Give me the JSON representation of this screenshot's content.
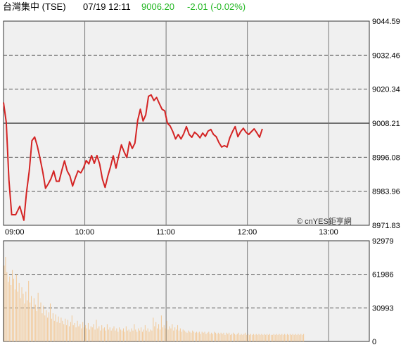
{
  "header": {
    "title": "台灣集中 (TSE)",
    "datetime": "07/19 12:11",
    "price": "9006.20",
    "change": "-2.01 (-0.02%)"
  },
  "colors": {
    "price_up": "#22b722",
    "price_line": "#d42424",
    "volume_bar": "#f2c896",
    "panel_bg": "#f0f0f0",
    "grid": "#555555"
  },
  "watermark": "© cnYES鉅亨網",
  "chart_data": [
    {
      "type": "line",
      "name": "price",
      "grid": true,
      "x_ticks": [
        "09:00",
        "10:00",
        "11:00",
        "12:00",
        "13:00"
      ],
      "x_range": [
        "09:00",
        "13:30"
      ],
      "y_ticks": [
        "9044.59",
        "9032.46",
        "9020.34",
        "9008.21",
        "8996.08",
        "8983.96",
        "8971.83"
      ],
      "ylim": [
        8971.83,
        9044.59
      ],
      "reference": 9008.21,
      "points": [
        [
          "09:00",
          9015.6
        ],
        [
          "09:02",
          9008.5
        ],
        [
          "09:04",
          8988.0
        ],
        [
          "09:06",
          8975.6
        ],
        [
          "09:09",
          8975.6
        ],
        [
          "09:12",
          8978.6
        ],
        [
          "09:15",
          8973.6
        ],
        [
          "09:17",
          8983.6
        ],
        [
          "09:19",
          8991.2
        ],
        [
          "09:21",
          9002.0
        ],
        [
          "09:23",
          9003.3
        ],
        [
          "09:25",
          9000.0
        ],
        [
          "09:27",
          8995.6
        ],
        [
          "09:29",
          8990.7
        ],
        [
          "09:31",
          8985.0
        ],
        [
          "09:33",
          8986.6
        ],
        [
          "09:35",
          8988.4
        ],
        [
          "09:37",
          8991.2
        ],
        [
          "09:39",
          8987.5
        ],
        [
          "09:41",
          8987.5
        ],
        [
          "09:43",
          8991.3
        ],
        [
          "09:45",
          8994.8
        ],
        [
          "09:47",
          8991.2
        ],
        [
          "09:49",
          8989.4
        ],
        [
          "09:51",
          8985.8
        ],
        [
          "09:53",
          8988.7
        ],
        [
          "09:55",
          8991.2
        ],
        [
          "09:57",
          8990.5
        ],
        [
          "09:59",
          8992.2
        ],
        [
          "10:01",
          8994.9
        ],
        [
          "10:03",
          8993.7
        ],
        [
          "10:05",
          8996.7
        ],
        [
          "10:07",
          8993.9
        ],
        [
          "10:09",
          8996.7
        ],
        [
          "10:11",
          8993.6
        ],
        [
          "10:13",
          8988.3
        ],
        [
          "10:15",
          8985.3
        ],
        [
          "10:17",
          8989.4
        ],
        [
          "10:19",
          8992.7
        ],
        [
          "10:21",
          8996.6
        ],
        [
          "10:23",
          8992.2
        ],
        [
          "10:25",
          8996.5
        ],
        [
          "10:27",
          9000.5
        ],
        [
          "10:29",
          8998.0
        ],
        [
          "10:31",
          8996.0
        ],
        [
          "10:33",
          9001.6
        ],
        [
          "10:35",
          8999.2
        ],
        [
          "10:37",
          9001.1
        ],
        [
          "10:39",
          9009.2
        ],
        [
          "10:41",
          9013.2
        ],
        [
          "10:43",
          9009.0
        ],
        [
          "10:45",
          9011.2
        ],
        [
          "10:47",
          9017.8
        ],
        [
          "10:49",
          9018.3
        ],
        [
          "10:51",
          9016.3
        ],
        [
          "10:53",
          9017.4
        ],
        [
          "10:55",
          9015.2
        ],
        [
          "10:57",
          9013.2
        ],
        [
          "10:59",
          9012.6
        ],
        [
          "11:01",
          9008.2
        ],
        [
          "11:03",
          9007.2
        ],
        [
          "11:05",
          9005.2
        ],
        [
          "11:07",
          9002.6
        ],
        [
          "11:09",
          9004.2
        ],
        [
          "11:11",
          9002.6
        ],
        [
          "11:13",
          9004.4
        ],
        [
          "11:15",
          9007.0
        ],
        [
          "11:17",
          9004.2
        ],
        [
          "11:19",
          9003.2
        ],
        [
          "11:21",
          9005.0
        ],
        [
          "11:23",
          9004.2
        ],
        [
          "11:25",
          9003.0
        ],
        [
          "11:27",
          9004.7
        ],
        [
          "11:29",
          9003.5
        ],
        [
          "11:31",
          9005.4
        ],
        [
          "11:33",
          9006.0
        ],
        [
          "11:35",
          9004.2
        ],
        [
          "11:37",
          9003.4
        ],
        [
          "11:39",
          9001.3
        ],
        [
          "11:41",
          8999.7
        ],
        [
          "11:43",
          9000.2
        ],
        [
          "11:45",
          8999.7
        ],
        [
          "11:47",
          9003.0
        ],
        [
          "11:49",
          9005.2
        ],
        [
          "11:51",
          9007.0
        ],
        [
          "11:53",
          9003.4
        ],
        [
          "11:55",
          9005.2
        ],
        [
          "11:57",
          9006.4
        ],
        [
          "11:59",
          9005.0
        ],
        [
          "12:01",
          9004.2
        ],
        [
          "12:03",
          9005.2
        ],
        [
          "12:05",
          9006.2
        ],
        [
          "12:07",
          9004.8
        ],
        [
          "12:09",
          9003.2
        ],
        [
          "12:11",
          9006.2
        ]
      ]
    },
    {
      "type": "bar",
      "name": "volume",
      "grid": true,
      "y_ticks": [
        "92979",
        "61986",
        "30993",
        "0"
      ],
      "ylim": [
        0,
        92979
      ],
      "x_range": [
        "09:00",
        "13:30"
      ],
      "minute_values": [
        70000,
        78000,
        64000,
        55000,
        60000,
        52000,
        66000,
        58000,
        48000,
        62000,
        46000,
        54000,
        40000,
        50000,
        44000,
        35000,
        46000,
        38000,
        56000,
        36000,
        42000,
        30000,
        40000,
        34000,
        28000,
        45000,
        30000,
        36000,
        26000,
        33000,
        24000,
        29000,
        22000,
        27000,
        35000,
        21000,
        26000,
        19000,
        25000,
        18000,
        23000,
        17000,
        22000,
        19000,
        16000,
        21000,
        15000,
        20000,
        14000,
        18000,
        24000,
        15000,
        17000,
        13000,
        19000,
        14000,
        16000,
        12000,
        18000,
        13000,
        15000,
        12000,
        17000,
        11000,
        14000,
        13000,
        16000,
        11000,
        20000,
        12000,
        14000,
        10000,
        15000,
        12000,
        13000,
        10000,
        16000,
        11000,
        13000,
        10000,
        12000,
        14000,
        10000,
        12000,
        9000,
        13000,
        11000,
        10000,
        12000,
        9000,
        14000,
        10000,
        11000,
        9000,
        12000,
        10000,
        16000,
        11000,
        9000,
        12000,
        10000,
        13000,
        9000,
        11000,
        15000,
        10000,
        12000,
        9000,
        11000,
        10000,
        22000,
        14000,
        18000,
        12000,
        16000,
        11000,
        24000,
        13000,
        15000,
        12000,
        19000,
        11000,
        14000,
        12000,
        16000,
        10000,
        13000,
        11000,
        15000,
        10000,
        12000,
        9000,
        11000,
        10000,
        9000,
        8000,
        10000,
        9000,
        8000,
        10000,
        9000,
        8000,
        9000,
        8000,
        9000,
        7000,
        9000,
        8000,
        9000,
        7000,
        8000,
        9000,
        7000,
        8000,
        7000,
        9000,
        8000,
        7000,
        8000,
        7000,
        8000,
        7000,
        8000,
        6000,
        8000,
        7000,
        8000,
        6000,
        7000,
        8000,
        7000,
        6000,
        7000,
        8000,
        6000,
        7000,
        6000,
        7000,
        8000,
        6000,
        7000,
        6000,
        7000,
        6000,
        7000,
        6000,
        7000,
        6000,
        7000,
        6000,
        7000,
        6000,
        7000,
        6000,
        7000,
        6000,
        7000,
        6000,
        6000,
        7000,
        6000,
        7000,
        6000,
        7000,
        6000,
        7000,
        6000,
        7000,
        6000,
        7000,
        6000,
        7000,
        6000,
        7000,
        6000,
        7000,
        6000,
        7000,
        6000,
        7000,
        6000,
        7000
      ]
    }
  ]
}
